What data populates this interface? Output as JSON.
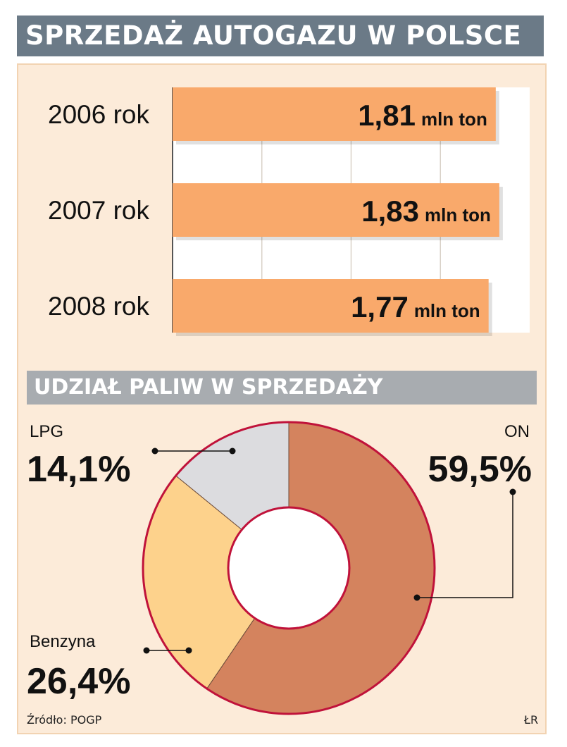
{
  "title": "SPRZEDAŻ AUTOGAZU W POLSCE",
  "subtitle": "UDZIAŁ PALIW W SPRZEDAŻY",
  "source": "Źródło: POGP",
  "author": "ŁR",
  "colors": {
    "bar": "#f9a96b",
    "on": "#d4835e",
    "benzyna": "#fdd28c",
    "lpg": "#dcdcdf",
    "ring": "#c0123a",
    "title_bg": "#6b7a87",
    "sub_bg": "#a8acb0"
  },
  "chart_data": [
    {
      "type": "bar",
      "orientation": "horizontal",
      "categories": [
        "2006 rok",
        "2007 rok",
        "2008 rok"
      ],
      "values": [
        1.81,
        1.83,
        1.77
      ],
      "value_labels": [
        "1,81",
        "1,83",
        "1,77"
      ],
      "unit": "mln ton",
      "xlim": [
        0,
        2.0
      ],
      "grid": true
    },
    {
      "type": "pie",
      "variant": "donut",
      "labels": [
        "ON",
        "Benzyna",
        "LPG"
      ],
      "values": [
        59.5,
        26.4,
        14.1
      ],
      "value_labels": [
        "59,5%",
        "26,4%",
        "14,1%"
      ]
    }
  ]
}
